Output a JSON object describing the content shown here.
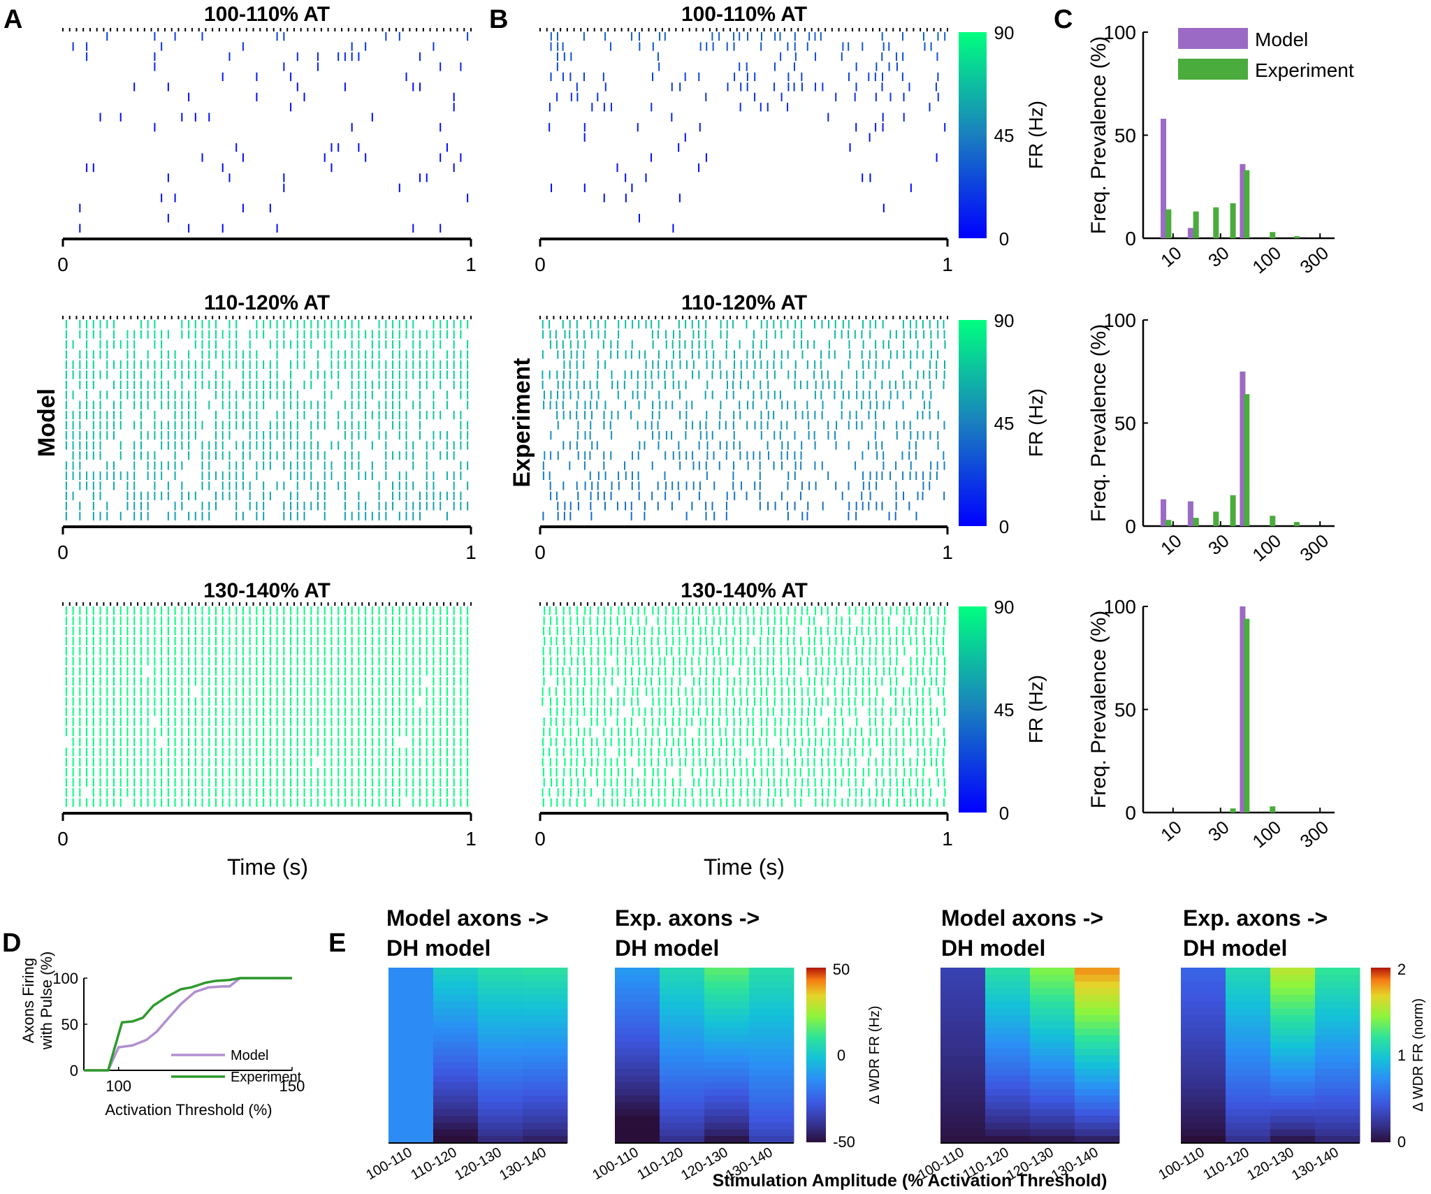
{
  "colors": {
    "model": "#9b6ac4",
    "experiment": "#4aac3c",
    "raster_low": "#0000ff",
    "raster_high": "#00ff80",
    "axis": "#000000"
  },
  "panel_letters": [
    "A",
    "B",
    "C",
    "D",
    "E"
  ],
  "row_titles": [
    "100-110% AT",
    "110-120% AT",
    "130-140% AT"
  ],
  "side_labels": {
    "model": "Model",
    "experiment": "Experiment"
  },
  "raster": {
    "xlabel": "Time (s)",
    "xticks": [
      "0",
      "1"
    ],
    "colorbar": {
      "label": "FR (Hz)",
      "ticks": [
        "0",
        "45",
        "90"
      ]
    },
    "pulse_rate_hz": 60,
    "rows_per_panel": 20
  },
  "chart_data": [
    {
      "id": "C-top",
      "type": "bar",
      "ylabel": "Freq. Prevalence (%)",
      "xscale": "log",
      "xticks": [
        10,
        30,
        100,
        300
      ],
      "yticks": [
        0,
        50,
        100
      ],
      "ylim": [
        0,
        100
      ],
      "legend": [
        "Model",
        "Experiment"
      ],
      "series": [
        {
          "name": "Model",
          "x": [
            8,
            15,
            50
          ],
          "values": [
            58,
            5,
            36
          ]
        },
        {
          "name": "Experiment",
          "x": [
            9,
            17,
            27,
            40,
            55,
            100,
            175
          ],
          "values": [
            14,
            13,
            15,
            17,
            33,
            3,
            1
          ]
        }
      ]
    },
    {
      "id": "C-mid",
      "type": "bar",
      "ylabel": "Freq. Prevalence (%)",
      "xscale": "log",
      "xticks": [
        10,
        30,
        100,
        300
      ],
      "yticks": [
        0,
        50,
        100
      ],
      "ylim": [
        0,
        100
      ],
      "series": [
        {
          "name": "Model",
          "x": [
            8,
            15,
            50
          ],
          "values": [
            13,
            12,
            75
          ]
        },
        {
          "name": "Experiment",
          "x": [
            9,
            17,
            27,
            40,
            55,
            100,
            175
          ],
          "values": [
            3,
            4,
            7,
            15,
            64,
            5,
            2
          ]
        }
      ]
    },
    {
      "id": "C-bot",
      "type": "bar",
      "ylabel": "Freq. Prevalence (%)",
      "xscale": "log",
      "xticks": [
        10,
        30,
        100,
        300
      ],
      "yticks": [
        0,
        50,
        100
      ],
      "ylim": [
        0,
        100
      ],
      "series": [
        {
          "name": "Model",
          "x": [
            50
          ],
          "values": [
            100
          ]
        },
        {
          "name": "Experiment",
          "x": [
            40,
            55,
            100
          ],
          "values": [
            2,
            94,
            3
          ]
        }
      ]
    },
    {
      "id": "D",
      "type": "line",
      "ylabel_lines": [
        "Axons Firing",
        "with Pulse (%)"
      ],
      "xlabel": "Activation Threshold (%)",
      "xlim": [
        90,
        150
      ],
      "ylim": [
        0,
        100
      ],
      "xticks": [
        100,
        150
      ],
      "yticks": [
        0,
        50,
        100
      ],
      "series": [
        {
          "name": "Model",
          "x": [
            90,
            97,
            100,
            104,
            108,
            111,
            114,
            118,
            122,
            126,
            130,
            132,
            135,
            150
          ],
          "y": [
            0,
            0,
            25,
            27,
            33,
            42,
            55,
            72,
            85,
            90,
            91,
            91,
            100,
            100
          ]
        },
        {
          "name": "Experiment",
          "x": [
            90,
            97,
            101,
            104,
            107,
            110,
            114,
            118,
            121,
            125,
            128,
            132,
            135,
            150
          ],
          "y": [
            0,
            0,
            52,
            53,
            57,
            70,
            80,
            88,
            90,
            95,
            97,
            98,
            100,
            100
          ]
        }
      ]
    },
    {
      "id": "E",
      "type": "heatmap",
      "xlabel": "Stimulation Amplitude (% Activation Threshold)",
      "categories": [
        "100-110",
        "110-120",
        "120-130",
        "130-140"
      ],
      "maps": [
        {
          "title": [
            "Model axons ->",
            "DH model"
          ],
          "start": [
            -15,
            -52,
            -42,
            -45
          ],
          "end": [
            -15,
            2,
            7,
            8
          ]
        },
        {
          "title": [
            "Exp. axons ->",
            "DH model"
          ],
          "start": [
            -58,
            -40,
            -48,
            -35
          ],
          "end": [
            -12,
            5,
            15,
            7
          ]
        }
      ],
      "colorbar": {
        "label": "Δ WDR FR (Hz)",
        "ticks": [
          "-50",
          "0",
          "50"
        ],
        "range": [
          -50,
          50
        ]
      },
      "maps_norm": [
        {
          "title": [
            "Model axons ->",
            "DH model"
          ],
          "start": [
            0.02,
            0.03,
            0.05,
            0.1
          ],
          "end": [
            0.3,
            1.15,
            1.4,
            1.8
          ]
        },
        {
          "title": [
            "Exp. axons ->",
            "DH model"
          ],
          "start": [
            0.0,
            0.2,
            0.05,
            0.15
          ],
          "end": [
            0.5,
            1.1,
            1.55,
            1.2
          ]
        }
      ],
      "colorbar_norm": {
        "label": "Δ WDR FR (norm)",
        "ticks": [
          "0",
          "1",
          "2"
        ],
        "range": [
          0,
          2
        ]
      }
    }
  ]
}
